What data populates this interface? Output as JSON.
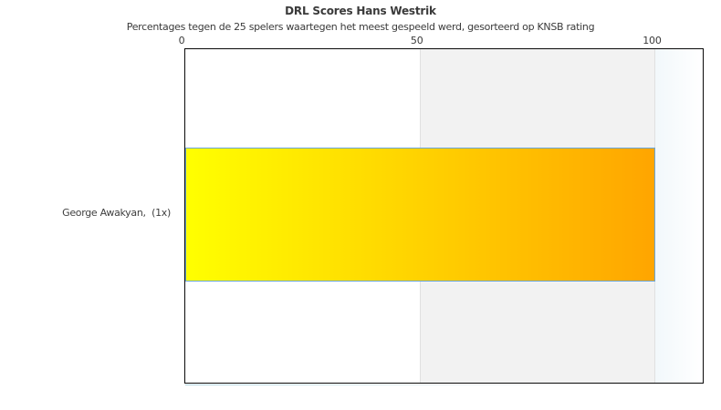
{
  "chart_data": {
    "type": "bar",
    "orientation": "horizontal",
    "title": "DRL Scores Hans Westrik",
    "subtitle": "Percentages tegen de 25 spelers waartegen het meest gespeeld werd, gesorteerd op KNSB rating",
    "categories": [
      "George Awakyan,  (1x)"
    ],
    "values": [
      100
    ],
    "xlim": [
      0,
      110
    ],
    "xticks": [
      0,
      50,
      100
    ],
    "xtick_labels": [
      "0",
      "50",
      "100"
    ],
    "xlabel": "",
    "ylabel": "",
    "legend": "none",
    "grid": "vertical gridlines at 50 and 100; interlaced gray stripe between 50 and 100",
    "colors": {
      "bar_gradient_start": "#ffff00",
      "bar_gradient_end": "#ffa500",
      "bar_border": "#69a5d6",
      "stripe_band": "#f2f2f2",
      "gridline": "#e0e0e0",
      "plot_border": "#0a0a0a",
      "right_margin_gradient_start": "#f2f8fb",
      "right_margin_gradient_end": "#ffffff",
      "text": "#3a3a3a"
    }
  }
}
